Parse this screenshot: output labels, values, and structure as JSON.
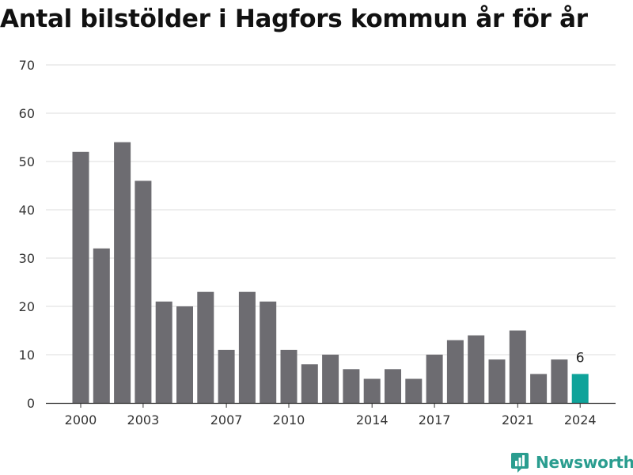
{
  "title": "Antal bilstölder i Hagfors kommun år för år",
  "brand": {
    "name": "Newsworthy",
    "icon": "newsworthy-logo-icon",
    "color": "#2a9d8f"
  },
  "chart_data": {
    "type": "bar",
    "title": "Antal bilstölder i Hagfors kommun år för år",
    "xlabel": "",
    "ylabel": "",
    "categories": [
      2000,
      2001,
      2002,
      2003,
      2004,
      2005,
      2006,
      2007,
      2008,
      2009,
      2010,
      2011,
      2012,
      2013,
      2014,
      2015,
      2016,
      2017,
      2018,
      2019,
      2020,
      2021,
      2022,
      2023,
      2024
    ],
    "values": [
      52,
      32,
      54,
      46,
      21,
      20,
      23,
      11,
      23,
      21,
      11,
      8,
      10,
      7,
      5,
      7,
      5,
      10,
      13,
      14,
      9,
      15,
      6,
      9,
      6
    ],
    "x_tick_labels": [
      "2000",
      "2003",
      "2007",
      "2010",
      "2014",
      "2017",
      "2021",
      "2024"
    ],
    "y_ticks": [
      0,
      10,
      20,
      30,
      40,
      50,
      60,
      70
    ],
    "ylim": [
      0,
      70
    ],
    "grid": true,
    "legend": "none",
    "bar_color": "#6d6c71",
    "highlight_color": "#0fa39a",
    "highlight_category": 2024,
    "data_labels": [
      {
        "category": 2024,
        "text": "6"
      }
    ]
  }
}
